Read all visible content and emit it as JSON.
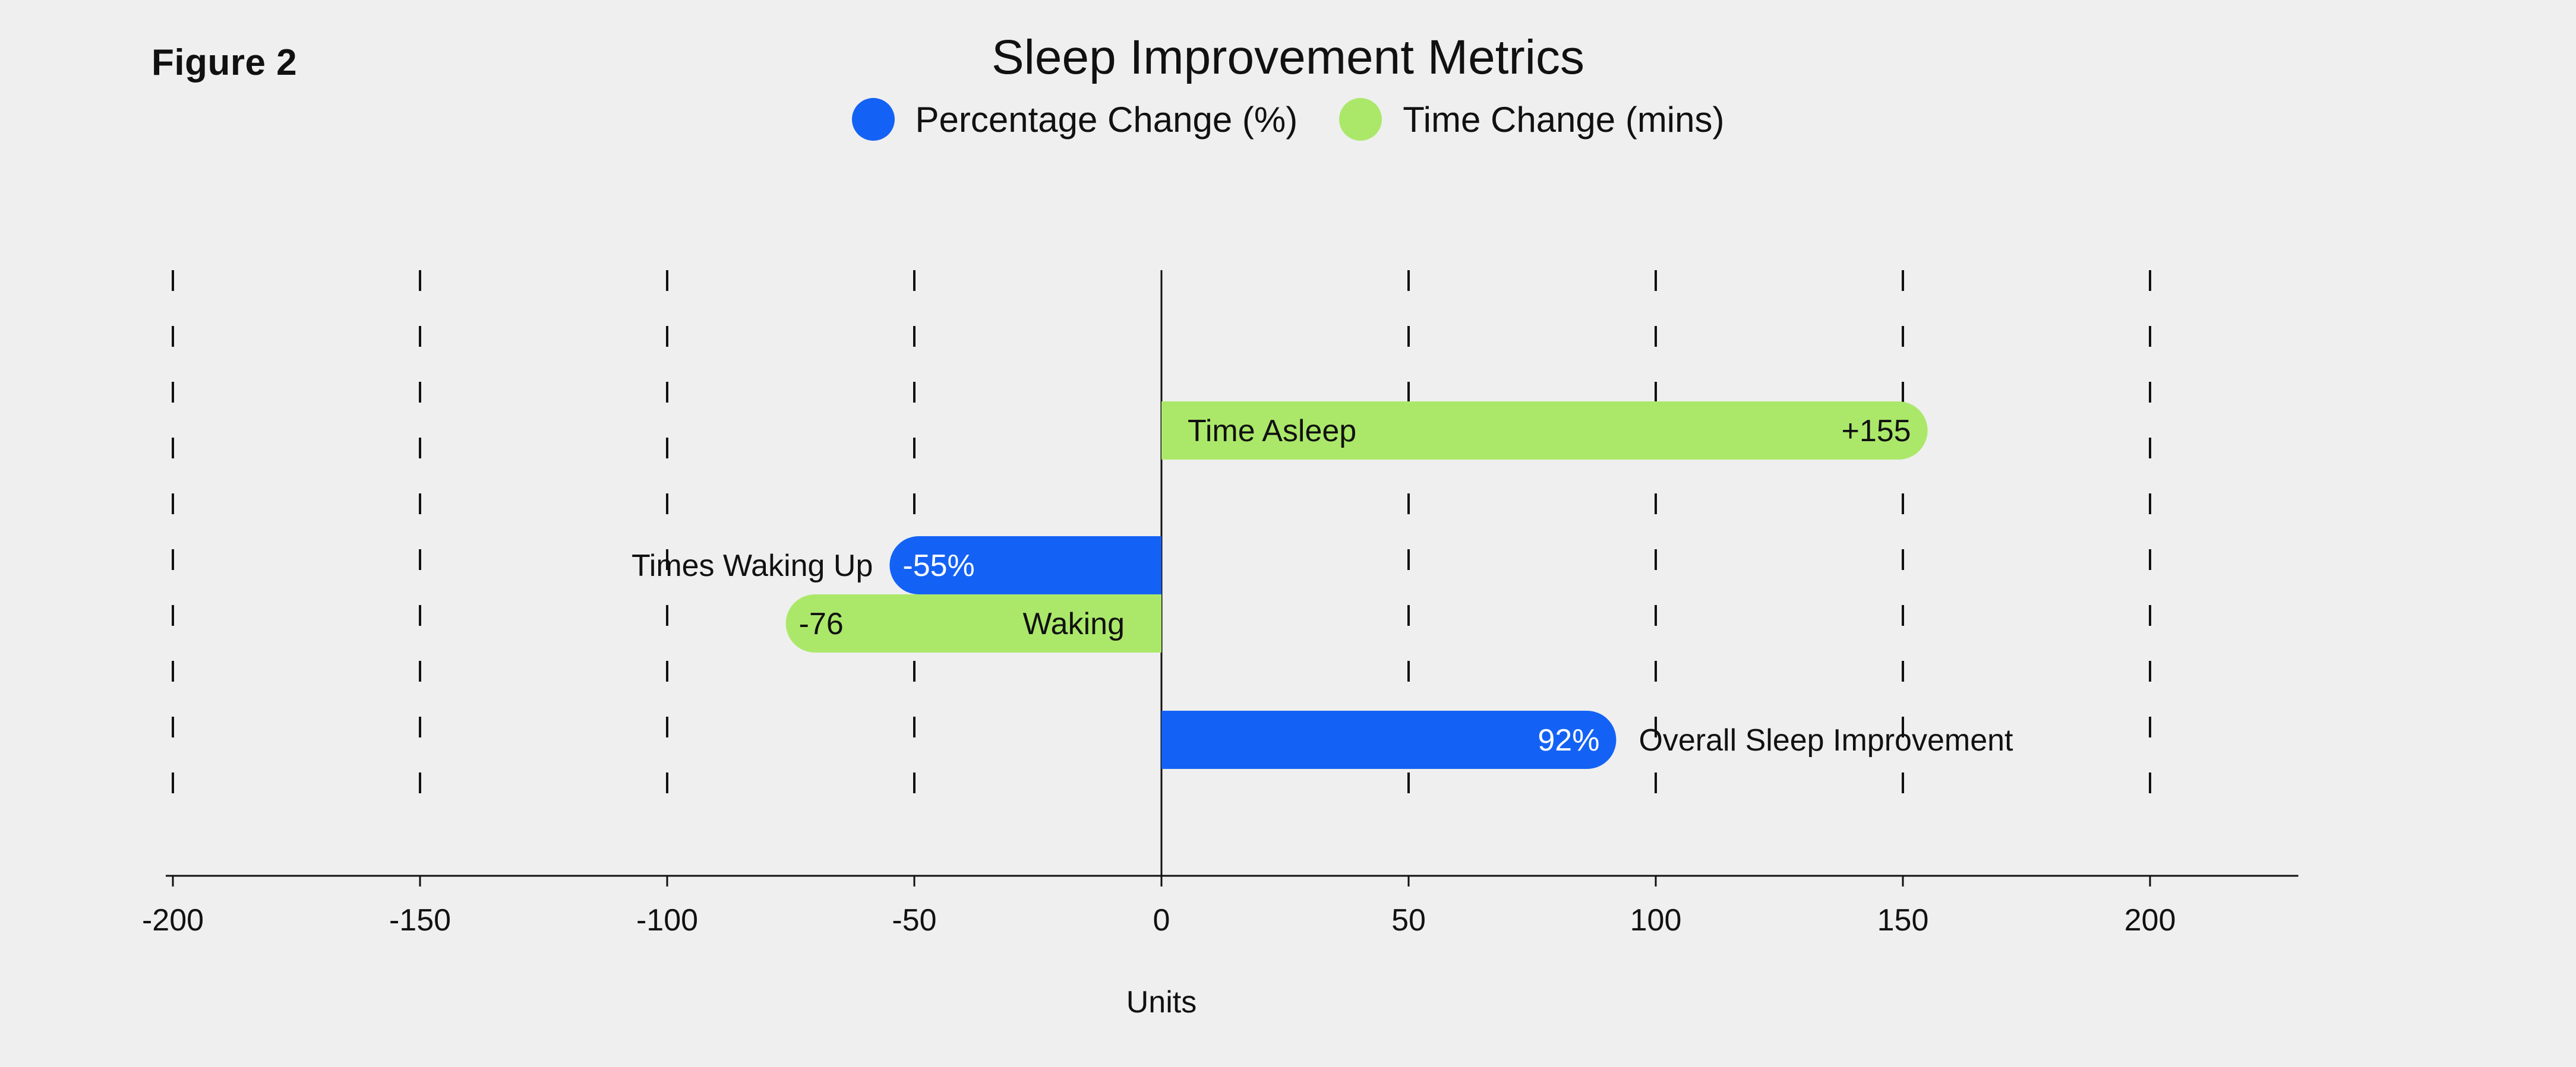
{
  "figure_label": "Figure 2",
  "chart_data": {
    "type": "bar",
    "orientation": "horizontal",
    "title": "Sleep Improvement Metrics",
    "xlabel": "Units",
    "ylabel": "",
    "xlim": [
      -200,
      230
    ],
    "xticks": [
      -200,
      -150,
      -100,
      -50,
      0,
      50,
      100,
      150,
      200
    ],
    "grid": "dashed vertical",
    "legend_position": "top-center",
    "series": [
      {
        "name": "Percentage Change (%)",
        "color": "#1462f5"
      },
      {
        "name": "Time Change (mins)",
        "color": "#abe86a"
      }
    ],
    "bars": [
      {
        "category": "Time Asleep",
        "series": 1,
        "value": 155,
        "value_label": "+155",
        "category_label_pos": "inside-start",
        "value_label_pos": "inside-end"
      },
      {
        "category": "Times Waking Up",
        "series": 0,
        "value": -55,
        "value_label": "-55%",
        "category_label_pos": "outside-end",
        "value_label_pos": "inside-end"
      },
      {
        "category": "Waking",
        "series": 1,
        "value": -76,
        "value_label": "-76",
        "category_label_pos": "inside-start",
        "value_label_pos": "inside-end"
      },
      {
        "category": "Overall Sleep Improvement",
        "series": 0,
        "value": 92,
        "value_label": "92%",
        "category_label_pos": "outside-end",
        "value_label_pos": "inside-end"
      }
    ]
  }
}
